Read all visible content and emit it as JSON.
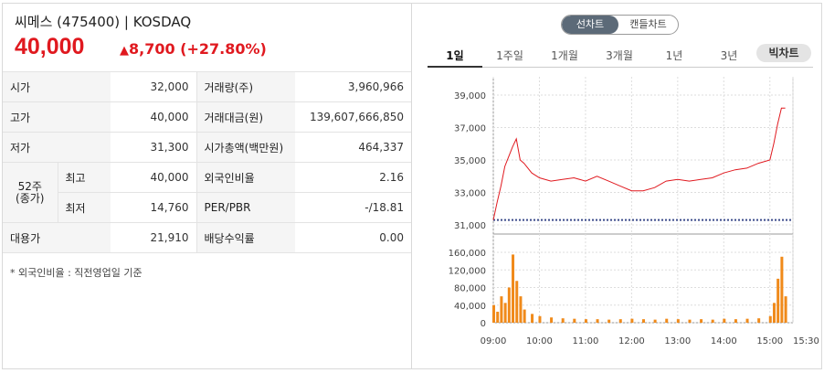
{
  "header": {
    "title": "씨메스 (475400) | KOSDAQ",
    "price": "40,000",
    "change_arrow": "▲",
    "change": "8,700 (+27.80%)",
    "up_color": "#e0191f"
  },
  "info": {
    "open_label": "시가",
    "open": "32,000",
    "high_label": "고가",
    "high": "40,000",
    "low_label": "저가",
    "low": "31,300",
    "w52_label": "52주\n(종가)",
    "w52_high_label": "최고",
    "w52_high": "40,000",
    "w52_low_label": "최저",
    "w52_low": "14,760",
    "ref_label": "대용가",
    "ref": "21,910",
    "volume_label": "거래량(주)",
    "volume": "3,960,966",
    "amount_label": "거래대금(원)",
    "amount": "139,607,666,850",
    "mcap_label": "시가총액(백만원)",
    "mcap": "464,337",
    "foreign_label": "외국인비율",
    "foreign": "2.16",
    "per_label": "PER/PBR",
    "per": "-/18.81",
    "div_label": "배당수익률",
    "div": "0.00"
  },
  "note": "* 외국인비율 : 직전영업일 기준",
  "toggle": {
    "line_chart": "선차트",
    "candle_chart": "캔들차트",
    "selected": "선차트"
  },
  "tabs": [
    "1일",
    "1주일",
    "1개월",
    "3개월",
    "1년",
    "3년"
  ],
  "active_tab": "1일",
  "big_chart_button": "빅차트",
  "chart_data": [
    {
      "type": "line",
      "x_ticks": [
        "09:00",
        "10:00",
        "11:00",
        "12:00",
        "13:00",
        "14:00",
        "15:00",
        "15:30"
      ],
      "y_ticks": [
        "39,000",
        "37,000",
        "35,000",
        "33,000",
        "31,000"
      ],
      "ylim": [
        31000,
        39000
      ],
      "baseline": 31300,
      "line_color": "#e0191f",
      "points": [
        [
          "09:00",
          31300
        ],
        [
          "09:05",
          32400
        ],
        [
          "09:10",
          33400
        ],
        [
          "09:15",
          34600
        ],
        [
          "09:20",
          35200
        ],
        [
          "09:25",
          35800
        ],
        [
          "09:30",
          36300
        ],
        [
          "09:35",
          35000
        ],
        [
          "09:40",
          34800
        ],
        [
          "09:50",
          34200
        ],
        [
          "10:00",
          33900
        ],
        [
          "10:15",
          33700
        ],
        [
          "10:30",
          33800
        ],
        [
          "10:45",
          33900
        ],
        [
          "11:00",
          33700
        ],
        [
          "11:15",
          34000
        ],
        [
          "11:30",
          33700
        ],
        [
          "11:45",
          33400
        ],
        [
          "12:00",
          33100
        ],
        [
          "12:15",
          33100
        ],
        [
          "12:30",
          33300
        ],
        [
          "12:45",
          33700
        ],
        [
          "13:00",
          33800
        ],
        [
          "13:15",
          33700
        ],
        [
          "13:30",
          33800
        ],
        [
          "13:45",
          33900
        ],
        [
          "14:00",
          34200
        ],
        [
          "14:15",
          34400
        ],
        [
          "14:30",
          34500
        ],
        [
          "14:45",
          34800
        ],
        [
          "15:00",
          35000
        ],
        [
          "15:05",
          36000
        ],
        [
          "15:10",
          37200
        ],
        [
          "15:15",
          38200
        ],
        [
          "15:20",
          38200
        ]
      ]
    },
    {
      "type": "bar",
      "y_ticks": [
        "160,000",
        "120,000",
        "80,000",
        "40,000",
        "0"
      ],
      "ylim": [
        0,
        160000
      ],
      "bar_color": "#f08a1a",
      "volumes": [
        [
          "09:00",
          40000
        ],
        [
          "09:05",
          25000
        ],
        [
          "09:10",
          60000
        ],
        [
          "09:15",
          45000
        ],
        [
          "09:20",
          80000
        ],
        [
          "09:25",
          155000
        ],
        [
          "09:30",
          95000
        ],
        [
          "09:35",
          60000
        ],
        [
          "09:40",
          30000
        ],
        [
          "09:50",
          20000
        ],
        [
          "10:00",
          15000
        ],
        [
          "10:15",
          12000
        ],
        [
          "10:30",
          10000
        ],
        [
          "10:45",
          9000
        ],
        [
          "11:00",
          8000
        ],
        [
          "11:15",
          8000
        ],
        [
          "11:30",
          7000
        ],
        [
          "11:45",
          8000
        ],
        [
          "12:00",
          9000
        ],
        [
          "12:15",
          8000
        ],
        [
          "12:30",
          7000
        ],
        [
          "12:45",
          9000
        ],
        [
          "13:00",
          8000
        ],
        [
          "13:15",
          7000
        ],
        [
          "13:30",
          8000
        ],
        [
          "13:45",
          7000
        ],
        [
          "14:00",
          9000
        ],
        [
          "14:15",
          8000
        ],
        [
          "14:30",
          9000
        ],
        [
          "14:45",
          10000
        ],
        [
          "15:00",
          15000
        ],
        [
          "15:05",
          45000
        ],
        [
          "15:10",
          100000
        ],
        [
          "15:15",
          150000
        ],
        [
          "15:20",
          60000
        ]
      ]
    }
  ]
}
